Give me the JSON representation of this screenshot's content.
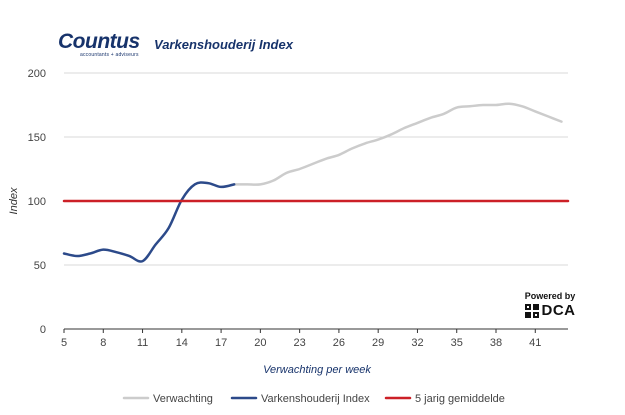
{
  "brand": {
    "name": "Countus",
    "tagline": "accountants + adviseurs"
  },
  "powered": {
    "label": "Powered by",
    "brand": "DCA"
  },
  "chart_data": {
    "type": "line",
    "title": "Varkenshouderij Index",
    "xlabel": "Verwachting per week",
    "ylabel": "Index",
    "xlim": [
      5,
      43.5
    ],
    "ylim": [
      0,
      200
    ],
    "xticks": [
      5,
      8,
      11,
      14,
      17,
      20,
      23,
      26,
      29,
      32,
      35,
      38,
      41
    ],
    "yticks": [
      0,
      50,
      100,
      150,
      200
    ],
    "grid": "horizontal",
    "legend_position": "bottom",
    "colors": {
      "grid": "#d9d9d9",
      "axis": "#333333",
      "ylabel": "#333333",
      "xlabel": "#17336b"
    },
    "series": [
      {
        "name": "Verwachting",
        "color": "#cccccc",
        "points": [
          [
            18,
            113
          ],
          [
            19,
            113
          ],
          [
            20,
            113
          ],
          [
            21,
            116
          ],
          [
            22,
            122
          ],
          [
            23,
            125
          ],
          [
            24,
            129
          ],
          [
            25,
            133
          ],
          [
            26,
            136
          ],
          [
            27,
            141
          ],
          [
            28,
            145
          ],
          [
            29,
            148
          ],
          [
            30,
            152
          ],
          [
            31,
            157
          ],
          [
            32,
            161
          ],
          [
            33,
            165
          ],
          [
            34,
            168
          ],
          [
            35,
            173
          ],
          [
            36,
            174
          ],
          [
            37,
            175
          ],
          [
            38,
            175
          ],
          [
            39,
            176
          ],
          [
            40,
            174
          ],
          [
            41,
            170
          ],
          [
            42,
            166
          ],
          [
            43,
            162
          ]
        ]
      },
      {
        "name": "Varkenshouderij Index",
        "color": "#2c4a8a",
        "points": [
          [
            5,
            59
          ],
          [
            6,
            57
          ],
          [
            7,
            59
          ],
          [
            8,
            62
          ],
          [
            9,
            60
          ],
          [
            10,
            57
          ],
          [
            11,
            53
          ],
          [
            12,
            66
          ],
          [
            13,
            79
          ],
          [
            14,
            101
          ],
          [
            15,
            113
          ],
          [
            16,
            114
          ],
          [
            17,
            111
          ],
          [
            18,
            113
          ]
        ]
      },
      {
        "name": "5 jarig gemiddelde",
        "color": "#cc2027",
        "points": [
          [
            5,
            100
          ],
          [
            43.5,
            100
          ]
        ]
      }
    ]
  }
}
